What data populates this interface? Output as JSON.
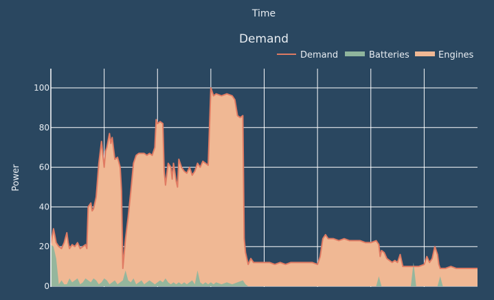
{
  "chart_data": {
    "type": "area",
    "header": "Time",
    "title": "Demand",
    "ylabel": "Power",
    "xlabel": "",
    "ylim": [
      0,
      100
    ],
    "yticks": [
      0,
      20,
      40,
      60,
      80,
      100
    ],
    "x_gridlines": 8,
    "grid": true,
    "legend_position": "top-right",
    "legend": [
      {
        "name": "Demand",
        "kind": "line",
        "color": "#e07b63"
      },
      {
        "name": "Batteries",
        "kind": "area",
        "color": "#8fb59d"
      },
      {
        "name": "Engines",
        "kind": "area",
        "color": "#f0b894"
      }
    ],
    "x_range": [
      0,
      160
    ],
    "series": [
      {
        "name": "Demand",
        "points": [
          [
            0,
            21
          ],
          [
            1,
            29
          ],
          [
            2,
            22
          ],
          [
            3,
            20
          ],
          [
            4,
            19
          ],
          [
            5,
            22
          ],
          [
            6,
            27
          ],
          [
            6.5,
            22
          ],
          [
            7,
            19
          ],
          [
            8,
            21
          ],
          [
            9,
            20
          ],
          [
            10,
            22
          ],
          [
            11,
            19
          ],
          [
            12,
            20
          ],
          [
            13,
            21
          ],
          [
            13.5,
            19
          ],
          [
            14,
            40
          ],
          [
            15,
            42
          ],
          [
            15.5,
            38
          ],
          [
            16,
            39
          ],
          [
            17,
            45
          ],
          [
            18,
            62
          ],
          [
            19,
            73
          ],
          [
            20,
            60
          ],
          [
            20.5,
            68
          ],
          [
            21,
            70
          ],
          [
            22,
            77
          ],
          [
            22.5,
            72
          ],
          [
            23,
            75
          ],
          [
            24,
            64
          ],
          [
            25,
            65
          ],
          [
            26,
            60
          ],
          [
            26.5,
            48
          ],
          [
            27,
            9
          ],
          [
            28,
            24
          ],
          [
            29,
            35
          ],
          [
            30,
            48
          ],
          [
            31,
            62
          ],
          [
            32,
            66
          ],
          [
            33,
            67
          ],
          [
            34,
            67
          ],
          [
            35,
            67
          ],
          [
            36,
            66
          ],
          [
            37,
            67
          ],
          [
            38,
            66
          ],
          [
            39,
            70
          ],
          [
            39.5,
            84
          ],
          [
            40,
            82
          ],
          [
            41,
            83
          ],
          [
            42,
            82
          ],
          [
            42.5,
            58
          ],
          [
            43,
            51
          ],
          [
            44,
            62
          ],
          [
            45,
            60
          ],
          [
            45.5,
            54
          ],
          [
            46,
            62
          ],
          [
            47,
            53
          ],
          [
            47.5,
            50
          ],
          [
            48,
            64
          ],
          [
            49,
            60
          ],
          [
            50,
            58
          ],
          [
            51,
            57
          ],
          [
            52,
            60
          ],
          [
            53,
            56
          ],
          [
            54,
            58
          ],
          [
            55,
            62
          ],
          [
            56,
            60
          ],
          [
            57,
            63
          ],
          [
            58,
            62
          ],
          [
            59,
            61
          ],
          [
            60,
            100
          ],
          [
            61,
            96
          ],
          [
            62,
            97
          ],
          [
            64,
            96
          ],
          [
            66,
            97
          ],
          [
            68,
            96
          ],
          [
            69,
            94
          ],
          [
            70,
            86
          ],
          [
            71,
            85
          ],
          [
            72,
            86
          ],
          [
            72.5,
            24
          ],
          [
            73,
            17
          ],
          [
            74,
            11
          ],
          [
            75,
            14
          ],
          [
            76,
            12
          ],
          [
            78,
            12
          ],
          [
            80,
            12
          ],
          [
            82,
            12
          ],
          [
            84,
            11
          ],
          [
            86,
            12
          ],
          [
            88,
            11
          ],
          [
            90,
            12
          ],
          [
            92,
            12
          ],
          [
            94,
            12
          ],
          [
            96,
            12
          ],
          [
            98,
            12
          ],
          [
            100,
            11
          ],
          [
            101,
            15
          ],
          [
            102,
            24
          ],
          [
            103,
            26
          ],
          [
            104,
            24
          ],
          [
            106,
            24
          ],
          [
            108,
            23
          ],
          [
            110,
            24
          ],
          [
            112,
            23
          ],
          [
            114,
            23
          ],
          [
            116,
            23
          ],
          [
            118,
            22
          ],
          [
            120,
            22
          ],
          [
            122,
            23
          ],
          [
            123,
            21
          ],
          [
            123.5,
            15
          ],
          [
            124,
            18
          ],
          [
            125,
            17
          ],
          [
            126,
            14
          ],
          [
            127,
            13
          ],
          [
            128,
            12
          ],
          [
            129,
            13
          ],
          [
            130,
            12
          ],
          [
            131,
            16
          ],
          [
            132,
            10
          ],
          [
            134,
            10
          ],
          [
            136,
            10
          ],
          [
            138,
            10
          ],
          [
            140,
            11
          ],
          [
            141,
            15
          ],
          [
            142,
            12
          ],
          [
            143,
            14
          ],
          [
            144,
            20
          ],
          [
            145,
            16
          ],
          [
            145.5,
            11
          ],
          [
            146,
            9
          ],
          [
            148,
            9
          ],
          [
            150,
            10
          ],
          [
            152,
            9
          ],
          [
            154,
            9
          ],
          [
            156,
            9
          ],
          [
            158,
            9
          ],
          [
            160,
            9
          ]
        ]
      },
      {
        "name": "Batteries",
        "points": [
          [
            0,
            21
          ],
          [
            1,
            20
          ],
          [
            2,
            14
          ],
          [
            3,
            1
          ],
          [
            4,
            3
          ],
          [
            5,
            1
          ],
          [
            6,
            1
          ],
          [
            7,
            4
          ],
          [
            8,
            2
          ],
          [
            9,
            3
          ],
          [
            10,
            4
          ],
          [
            11,
            1
          ],
          [
            12,
            2
          ],
          [
            13,
            4
          ],
          [
            14,
            3
          ],
          [
            15,
            2
          ],
          [
            16,
            4
          ],
          [
            17,
            3
          ],
          [
            18,
            1
          ],
          [
            19,
            2
          ],
          [
            20,
            4
          ],
          [
            21,
            3
          ],
          [
            22,
            1
          ],
          [
            23,
            2
          ],
          [
            24,
            3
          ],
          [
            25,
            1
          ],
          [
            26,
            2
          ],
          [
            27,
            3
          ],
          [
            28,
            8
          ],
          [
            29,
            3
          ],
          [
            30,
            2
          ],
          [
            31,
            4
          ],
          [
            32,
            1
          ],
          [
            33,
            2
          ],
          [
            34,
            3
          ],
          [
            35,
            1
          ],
          [
            36,
            2
          ],
          [
            37,
            3
          ],
          [
            38,
            2
          ],
          [
            39,
            1
          ],
          [
            40,
            2
          ],
          [
            41,
            3
          ],
          [
            42,
            2
          ],
          [
            43,
            4
          ],
          [
            44,
            2
          ],
          [
            45,
            1
          ],
          [
            46,
            2
          ],
          [
            47,
            1
          ],
          [
            48,
            2
          ],
          [
            49,
            1
          ],
          [
            50,
            2
          ],
          [
            51,
            1
          ],
          [
            52,
            2
          ],
          [
            53,
            3
          ],
          [
            54,
            1
          ],
          [
            55,
            8
          ],
          [
            56,
            2
          ],
          [
            57,
            1
          ],
          [
            58,
            2
          ],
          [
            59,
            1
          ],
          [
            60,
            2
          ],
          [
            61,
            1
          ],
          [
            62,
            2
          ],
          [
            64,
            1
          ],
          [
            66,
            2
          ],
          [
            68,
            1
          ],
          [
            70,
            2
          ],
          [
            72,
            3
          ],
          [
            73,
            1
          ],
          [
            74,
            0
          ],
          [
            80,
            0
          ],
          [
            90,
            0
          ],
          [
            100,
            0
          ],
          [
            110,
            0
          ],
          [
            120,
            0
          ],
          [
            122,
            0
          ],
          [
            123,
            5
          ],
          [
            124,
            0
          ],
          [
            130,
            0
          ],
          [
            135,
            0
          ],
          [
            136,
            12
          ],
          [
            137,
            0
          ],
          [
            140,
            0
          ],
          [
            145,
            0
          ],
          [
            146,
            5
          ],
          [
            147,
            0
          ],
          [
            150,
            0
          ],
          [
            160,
            0
          ]
        ]
      }
    ]
  }
}
